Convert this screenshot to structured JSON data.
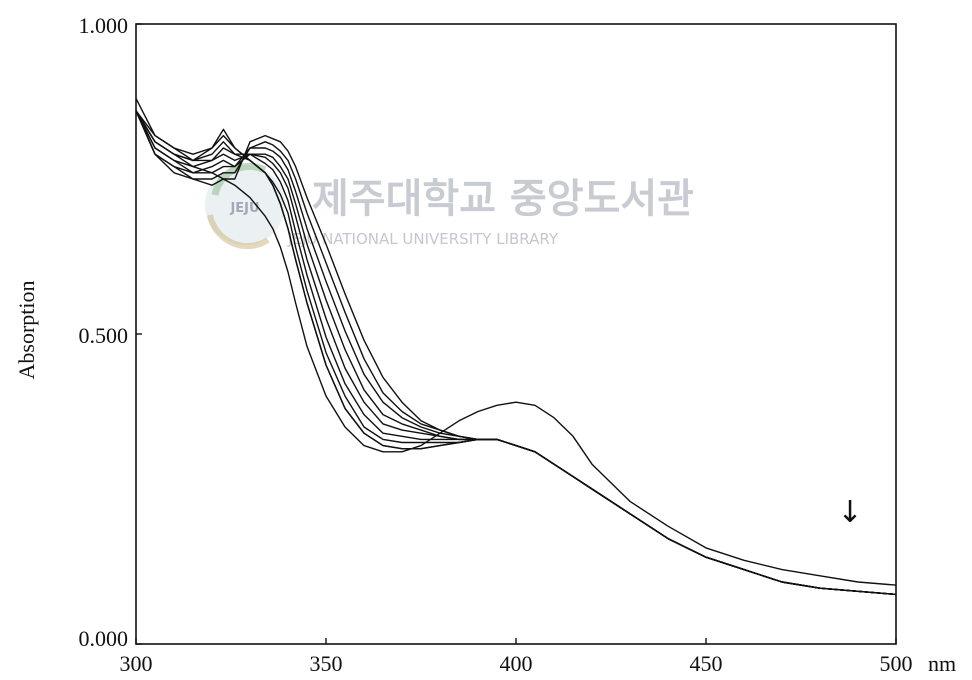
{
  "chart_data": {
    "type": "line",
    "title": "",
    "xlabel": "nm",
    "ylabel": "Absorption",
    "xlim": [
      300,
      500
    ],
    "ylim": [
      0.0,
      1.0
    ],
    "x_ticks": [
      "300",
      "350",
      "400",
      "450",
      "500"
    ],
    "y_ticks": [
      "0.000",
      "0.500",
      "1.000"
    ],
    "grid": false,
    "annotation": "↓",
    "watermark": {
      "text_ko": "제주대학교 중앙도서관",
      "text_en": "JEJU NATIONAL UNIVERSITY LIBRARY",
      "logo_text": "JEJU"
    },
    "x": [
      300,
      305,
      310,
      315,
      320,
      323,
      326,
      330,
      334,
      336,
      338,
      340,
      342,
      345,
      350,
      355,
      360,
      365,
      370,
      375,
      380,
      385,
      390,
      395,
      400,
      405,
      410,
      415,
      420,
      430,
      440,
      450,
      460,
      470,
      480,
      490,
      500
    ],
    "series": [
      {
        "values": [
          0.88,
          0.82,
          0.8,
          0.79,
          0.8,
          0.82,
          0.8,
          0.78,
          0.76,
          0.74,
          0.71,
          0.67,
          0.62,
          0.55,
          0.45,
          0.38,
          0.34,
          0.32,
          0.315,
          0.315,
          0.32,
          0.325,
          0.33,
          0.33,
          0.32,
          0.31,
          0.29,
          0.27,
          0.25,
          0.21,
          0.17,
          0.14,
          0.12,
          0.1,
          0.09,
          0.085,
          0.08
        ]
      },
      {
        "values": [
          0.86,
          0.82,
          0.8,
          0.78,
          0.8,
          0.83,
          0.8,
          0.78,
          0.76,
          0.74,
          0.71,
          0.67,
          0.62,
          0.55,
          0.45,
          0.38,
          0.34,
          0.32,
          0.315,
          0.315,
          0.32,
          0.325,
          0.33,
          0.33,
          0.32,
          0.31,
          0.29,
          0.27,
          0.25,
          0.21,
          0.17,
          0.14,
          0.12,
          0.1,
          0.09,
          0.085,
          0.08
        ]
      },
      {
        "values": [
          0.86,
          0.81,
          0.79,
          0.78,
          0.79,
          0.81,
          0.79,
          0.78,
          0.76,
          0.745,
          0.725,
          0.695,
          0.64,
          0.57,
          0.47,
          0.4,
          0.35,
          0.33,
          0.325,
          0.325,
          0.325,
          0.325,
          0.33,
          0.33,
          0.32,
          0.31,
          0.29,
          0.27,
          0.25,
          0.21,
          0.17,
          0.14,
          0.12,
          0.1,
          0.09,
          0.085,
          0.08
        ]
      },
      {
        "values": [
          0.86,
          0.81,
          0.79,
          0.78,
          0.78,
          0.8,
          0.79,
          0.79,
          0.775,
          0.765,
          0.745,
          0.715,
          0.665,
          0.595,
          0.495,
          0.42,
          0.37,
          0.34,
          0.335,
          0.33,
          0.33,
          0.33,
          0.33,
          0.33,
          0.32,
          0.31,
          0.29,
          0.27,
          0.25,
          0.21,
          0.17,
          0.14,
          0.12,
          0.1,
          0.09,
          0.085,
          0.08
        ]
      },
      {
        "values": [
          0.86,
          0.8,
          0.78,
          0.77,
          0.78,
          0.79,
          0.78,
          0.79,
          0.785,
          0.775,
          0.76,
          0.735,
          0.69,
          0.62,
          0.525,
          0.445,
          0.39,
          0.355,
          0.345,
          0.34,
          0.335,
          0.33,
          0.33,
          0.33,
          0.32,
          0.31,
          0.29,
          0.27,
          0.25,
          0.21,
          0.17,
          0.14,
          0.12,
          0.1,
          0.09,
          0.085,
          0.08
        ]
      },
      {
        "values": [
          0.86,
          0.8,
          0.78,
          0.76,
          0.77,
          0.78,
          0.77,
          0.79,
          0.79,
          0.785,
          0.77,
          0.75,
          0.71,
          0.645,
          0.555,
          0.475,
          0.41,
          0.37,
          0.355,
          0.345,
          0.335,
          0.33,
          0.33,
          0.33,
          0.32,
          0.31,
          0.29,
          0.27,
          0.25,
          0.21,
          0.17,
          0.14,
          0.12,
          0.1,
          0.09,
          0.085,
          0.08
        ]
      },
      {
        "values": [
          0.86,
          0.79,
          0.77,
          0.76,
          0.76,
          0.77,
          0.77,
          0.8,
          0.8,
          0.795,
          0.785,
          0.765,
          0.73,
          0.67,
          0.585,
          0.505,
          0.435,
          0.39,
          0.365,
          0.35,
          0.34,
          0.335,
          0.33,
          0.33,
          0.32,
          0.31,
          0.29,
          0.27,
          0.25,
          0.21,
          0.17,
          0.14,
          0.12,
          0.1,
          0.09,
          0.085,
          0.08
        ]
      },
      {
        "values": [
          0.86,
          0.79,
          0.77,
          0.75,
          0.75,
          0.76,
          0.76,
          0.8,
          0.81,
          0.805,
          0.795,
          0.78,
          0.75,
          0.695,
          0.615,
          0.535,
          0.46,
          0.405,
          0.375,
          0.355,
          0.345,
          0.335,
          0.33,
          0.33,
          0.32,
          0.31,
          0.29,
          0.27,
          0.25,
          0.21,
          0.17,
          0.14,
          0.12,
          0.1,
          0.09,
          0.085,
          0.08
        ]
      },
      {
        "values": [
          0.86,
          0.79,
          0.76,
          0.75,
          0.74,
          0.75,
          0.75,
          0.81,
          0.82,
          0.815,
          0.81,
          0.795,
          0.77,
          0.72,
          0.645,
          0.565,
          0.49,
          0.43,
          0.39,
          0.36,
          0.345,
          0.335,
          0.33,
          0.33,
          0.32,
          0.31,
          0.29,
          0.27,
          0.25,
          0.21,
          0.17,
          0.14,
          0.12,
          0.1,
          0.09,
          0.085,
          0.08
        ]
      },
      {
        "values": [
          0.86,
          0.81,
          0.79,
          0.77,
          0.76,
          0.75,
          0.74,
          0.72,
          0.69,
          0.67,
          0.64,
          0.6,
          0.55,
          0.48,
          0.4,
          0.35,
          0.32,
          0.31,
          0.31,
          0.32,
          0.34,
          0.36,
          0.375,
          0.385,
          0.39,
          0.385,
          0.365,
          0.335,
          0.29,
          0.23,
          0.19,
          0.155,
          0.135,
          0.12,
          0.11,
          0.1,
          0.095
        ]
      }
    ]
  }
}
